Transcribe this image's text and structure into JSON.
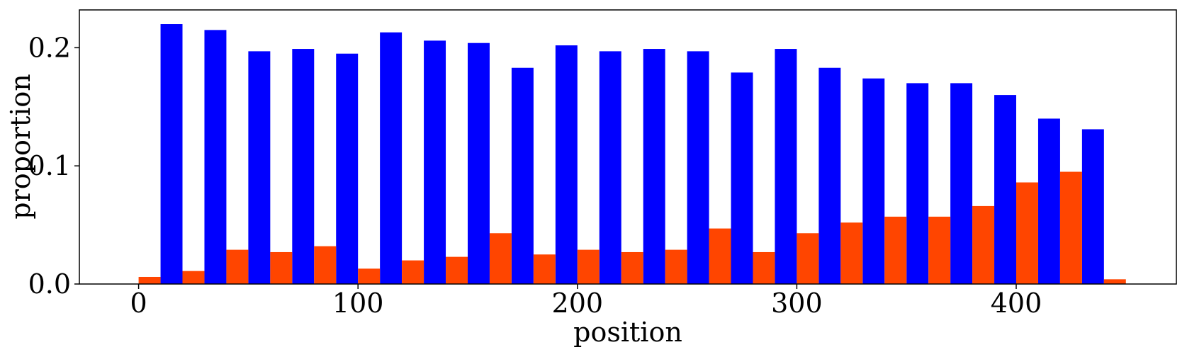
{
  "chart_data": {
    "type": "bar",
    "xlabel": "position",
    "ylabel": "proportion",
    "xlim": [
      -27,
      473
    ],
    "ylim": [
      0,
      0.232
    ],
    "xticks": [
      0,
      100,
      200,
      300,
      400
    ],
    "xtick_labels": [
      "0",
      "100",
      "200",
      "300",
      "400"
    ],
    "yticks": [
      0.0,
      0.1,
      0.2
    ],
    "ytick_labels": [
      "0.0",
      "0.1",
      "0.2"
    ],
    "grid": false,
    "legend": "none",
    "bar_width": 10,
    "series": [
      {
        "color": "#0000ff",
        "x": [
          15,
          35,
          55,
          75,
          95,
          115,
          135,
          155,
          175,
          195,
          215,
          235,
          255,
          275,
          295,
          315,
          335,
          355,
          375,
          395,
          415,
          435
        ],
        "values": [
          0.22,
          0.215,
          0.197,
          0.199,
          0.195,
          0.213,
          0.206,
          0.204,
          0.183,
          0.202,
          0.197,
          0.199,
          0.197,
          0.179,
          0.199,
          0.183,
          0.174,
          0.17,
          0.17,
          0.16,
          0.14,
          0.131
        ]
      },
      {
        "color": "#ff4500",
        "x": [
          5,
          25,
          45,
          65,
          85,
          105,
          125,
          145,
          165,
          185,
          205,
          225,
          245,
          265,
          285,
          305,
          325,
          345,
          365,
          385,
          405,
          425,
          445
        ],
        "values": [
          0.006,
          0.011,
          0.029,
          0.027,
          0.032,
          0.013,
          0.02,
          0.023,
          0.043,
          0.025,
          0.029,
          0.027,
          0.029,
          0.047,
          0.027,
          0.043,
          0.052,
          0.057,
          0.057,
          0.066,
          0.086,
          0.095,
          0.004
        ]
      }
    ]
  }
}
